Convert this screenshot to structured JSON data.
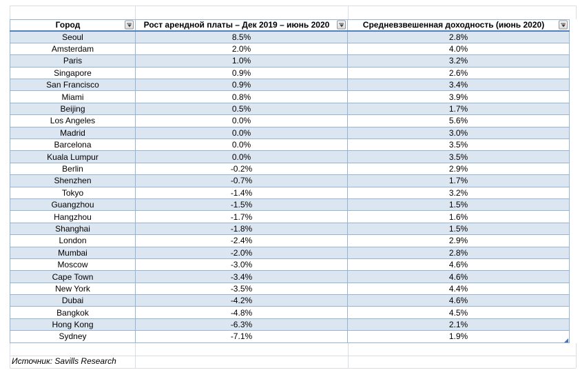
{
  "table": {
    "columns": [
      {
        "label": "Город"
      },
      {
        "label": "Рост арендной платы – Дек 2019 – июнь 2020"
      },
      {
        "label": "Средневзвешенная доходность (июнь 2020)"
      }
    ],
    "rows": [
      [
        "Seoul",
        "8.5%",
        "2.8%"
      ],
      [
        "Amsterdam",
        "2.0%",
        "4.0%"
      ],
      [
        "Paris",
        "1.0%",
        "3.2%"
      ],
      [
        "Singapore",
        "0.9%",
        "2.6%"
      ],
      [
        "San Francisco",
        "0.9%",
        "3.4%"
      ],
      [
        "Miami",
        "0.8%",
        "3.9%"
      ],
      [
        "Beijing",
        "0.5%",
        "1.7%"
      ],
      [
        "Los Angeles",
        "0.0%",
        "5.6%"
      ],
      [
        "Madrid",
        "0.0%",
        "3.0%"
      ],
      [
        "Barcelona",
        "0.0%",
        "3.5%"
      ],
      [
        "Kuala Lumpur",
        "0.0%",
        "3.5%"
      ],
      [
        "Berlin",
        "-0.2%",
        "2.9%"
      ],
      [
        "Shenzhen",
        "-0.7%",
        "1.7%"
      ],
      [
        "Tokyo",
        "-1.4%",
        "3.2%"
      ],
      [
        "Guangzhou",
        "-1.5%",
        "1.5%"
      ],
      [
        "Hangzhou",
        "-1.7%",
        "1.6%"
      ],
      [
        "Shanghai",
        "-1.8%",
        "1.5%"
      ],
      [
        "London",
        "-2.4%",
        "2.9%"
      ],
      [
        "Mumbai",
        "-2.0%",
        "2.8%"
      ],
      [
        "Moscow",
        "-3.0%",
        "4.6%"
      ],
      [
        "Cape Town",
        "-3.4%",
        "4.6%"
      ],
      [
        "New York",
        "-3.5%",
        "4.4%"
      ],
      [
        "Dubai",
        "-4.2%",
        "4.6%"
      ],
      [
        "Bangkok",
        "-4.8%",
        "4.5%"
      ],
      [
        "Hong Kong",
        "-6.3%",
        "2.1%"
      ],
      [
        "Sydney",
        "-7.1%",
        "1.9%"
      ]
    ]
  },
  "source": "Источник: Savills Research",
  "icons": {
    "header_filter": "filter-dropdown"
  },
  "colors": {
    "band_fill": "#dce6f1",
    "table_border": "#95b3d7",
    "header_underline": "#4f81bd",
    "gridline": "#d9dee6",
    "resize_handle": "#4472c4"
  }
}
